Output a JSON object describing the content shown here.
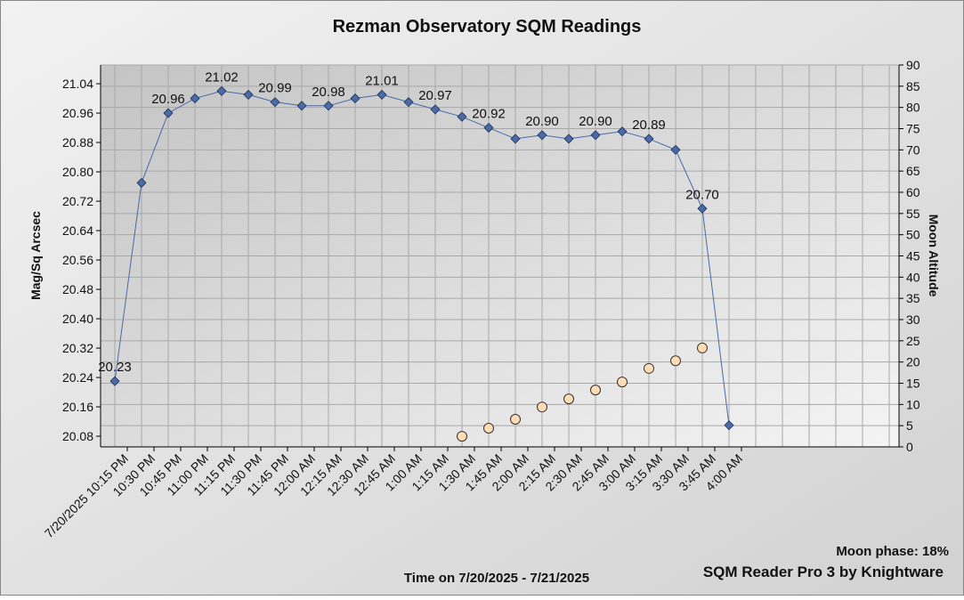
{
  "chart_data": {
    "type": "line",
    "title": "Rezman Observatory SQM Readings",
    "ylabel": "Mag/Sq Arcsec",
    "y2label": "Moon Altitude",
    "xlabel": "Time on 7/20/2025 - 7/21/2025",
    "annotations": [
      "Moon phase: 18%",
      "SQM Reader Pro 3 by Knightware"
    ],
    "categories": [
      "7/20/2025 10:15 PM",
      "10:30 PM",
      "10:45 PM",
      "11:00 PM",
      "11:15 PM",
      "11:30 PM",
      "11:45 PM",
      "12:00 AM",
      "12:15 AM",
      "12:30 AM",
      "12:45 AM",
      "1:00 AM",
      "1:15 AM",
      "1:30 AM",
      "1:45 AM",
      "2:00 AM",
      "2:15 AM",
      "2:30 AM",
      "2:45 AM",
      "3:00 AM",
      "3:15 AM",
      "3:30 AM",
      "3:45 AM",
      "4:00 AM"
    ],
    "series": [
      {
        "style": "line",
        "color": "#4a6aa8",
        "values": [
          20.23,
          20.77,
          20.96,
          21.0,
          21.02,
          21.01,
          20.99,
          20.98,
          20.98,
          21.0,
          21.01,
          20.99,
          20.97,
          20.95,
          20.92,
          20.89,
          20.9,
          20.89,
          20.9,
          20.91,
          20.89,
          20.86,
          20.7,
          20.11
        ],
        "value_labels": [
          "20.23",
          null,
          "20.96",
          null,
          "21.02",
          null,
          "20.99",
          null,
          "20.98",
          null,
          "21.01",
          null,
          "20.97",
          null,
          "20.92",
          null,
          "20.90",
          null,
          "20.90",
          null,
          "20.89",
          null,
          "20.70",
          null
        ]
      },
      {
        "style": "markers",
        "axis": "y2",
        "color": "#ffdcb4",
        "values": [
          null,
          null,
          null,
          null,
          null,
          null,
          null,
          null,
          null,
          null,
          null,
          null,
          null,
          2.5,
          4.4,
          6.5,
          9.4,
          11.3,
          13.4,
          15.3,
          18.5,
          20.3,
          23.3,
          null
        ]
      }
    ],
    "ylim": [
      20.051,
      21.091
    ],
    "yticks": [
      20.08,
      20.16,
      20.24,
      20.32,
      {
        "value": 20.4,
        "label": "20.40"
      },
      20.48,
      20.56,
      20.64,
      20.72,
      {
        "value": 20.8,
        "label": "20.80"
      },
      20.88,
      20.96,
      21.04
    ],
    "y2lim": [
      0,
      90
    ],
    "y2ticks": [
      0,
      5,
      10,
      15,
      20,
      25,
      30,
      35,
      40,
      45,
      50,
      55,
      60,
      65,
      70,
      75,
      80,
      85,
      90
    ],
    "grid": true
  }
}
